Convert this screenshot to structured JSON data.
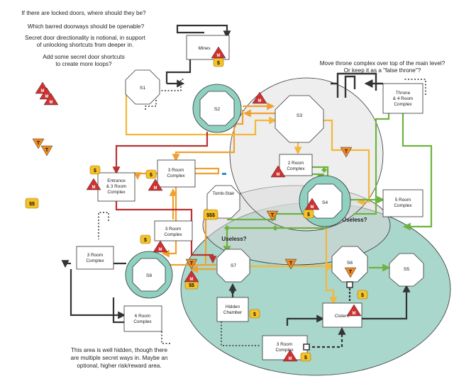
{
  "notes": {
    "top_left": [
      "If there are locked doors, where should they be?",
      "Which barred doorways should be openable?",
      "Secret door directionality is notional, in support",
      "of unlocking shortcuts from deeper in.",
      "Add some secret door shortcuts",
      "to create more loops?"
    ],
    "top_right": [
      "Move throne complex over top of the main level?",
      "Or keep it as a \"false throne\"?"
    ],
    "bottom_left": [
      "This area is well hidden, though there",
      "are multiple secret ways in. Maybe an",
      "optional, higher risk/reward area."
    ],
    "useless": "Useless?"
  },
  "rooms": {
    "mines": "Mines",
    "entrance": [
      "Entrance",
      "& 3 Room",
      "Complex"
    ],
    "three_room_a": [
      "3 Room",
      "Complex"
    ],
    "three_room_b": [
      "3 Room",
      "Complex"
    ],
    "three_room_c": [
      "3 Room",
      "Complex"
    ],
    "three_room_d": [
      "3 Room",
      "Complex"
    ],
    "two_room": [
      "2 Room",
      "Complex"
    ],
    "five_room": [
      "5 Room",
      "Complex"
    ],
    "six_room": [
      "6 Room",
      "Complex"
    ],
    "throne": [
      "Throne",
      "& 4 Room",
      "Complex"
    ],
    "hidden": [
      "Hidden",
      "Chamber"
    ],
    "cistern": "Cistern",
    "tomb_stair": "Tomb-Stair"
  },
  "stairs": {
    "s1": "S1",
    "s2": "S2",
    "s3": "S3",
    "s4": "S4",
    "s5": "S5",
    "s6": "S6",
    "s7": "S7",
    "s8": "S8"
  },
  "tokens": {
    "dollar": "$",
    "dollar2": "$$",
    "dollar3": "$$$",
    "monster": "M",
    "trap": "T"
  },
  "colors": {
    "orange": "#f0a030",
    "yellow": "#f4b73a",
    "red": "#b83232",
    "green": "#6db33f",
    "dark": "#333333",
    "teal_zone": "#a9d7cb",
    "grey_zone": "#d6d6d6",
    "stair_ring": "#8fd0c0",
    "monster_red": "#d03030",
    "trap_orange": "#f08a22",
    "gold": "#f5c22a"
  }
}
